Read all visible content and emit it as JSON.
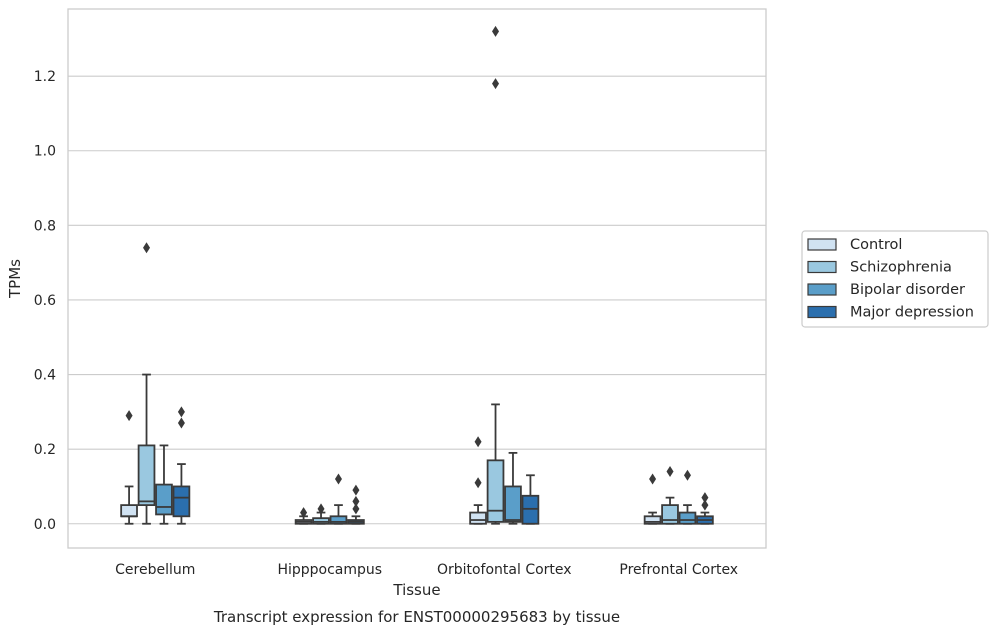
{
  "chart_data": {
    "type": "box",
    "title": "",
    "caption": "Transcript expression for ENST00000295683 by tissue",
    "xlabel": "Tissue",
    "ylabel": "TPMs",
    "ylim": [
      -0.065,
      1.38
    ],
    "yticks": [
      "0.0",
      "0.2",
      "0.4",
      "0.6",
      "0.8",
      "1.0",
      "1.2"
    ],
    "grid": "horizontal",
    "legend_position": "right",
    "categories": [
      "Cerebellum",
      "Hipppocampus",
      "Orbitofontal Cortex",
      "Prefrontal Cortex"
    ],
    "series": [
      {
        "name": "Control",
        "color": "#d0e2f2",
        "boxes": [
          {
            "whislo": 0.0,
            "q1": 0.02,
            "med": 0.02,
            "q3": 0.05,
            "whishi": 0.1,
            "fliers": [
              0.29
            ]
          },
          {
            "whislo": 0.0,
            "q1": 0.0,
            "med": 0.005,
            "q3": 0.01,
            "whishi": 0.02,
            "fliers": [
              0.03
            ]
          },
          {
            "whislo": 0.0,
            "q1": 0.0,
            "med": 0.01,
            "q3": 0.03,
            "whishi": 0.05,
            "fliers": [
              0.11,
              0.22
            ]
          },
          {
            "whislo": 0.0,
            "q1": 0.0,
            "med": 0.005,
            "q3": 0.02,
            "whishi": 0.03,
            "fliers": [
              0.12
            ]
          }
        ]
      },
      {
        "name": "Schizophrenia",
        "color": "#9ac8e0",
        "boxes": [
          {
            "whislo": 0.0,
            "q1": 0.05,
            "med": 0.06,
            "q3": 0.21,
            "whishi": 0.4,
            "fliers": [
              0.74
            ]
          },
          {
            "whislo": 0.0,
            "q1": 0.0,
            "med": 0.005,
            "q3": 0.015,
            "whishi": 0.03,
            "fliers": [
              0.04
            ]
          },
          {
            "whislo": 0.0,
            "q1": 0.005,
            "med": 0.035,
            "q3": 0.17,
            "whishi": 0.32,
            "fliers": [
              1.18,
              1.32
            ]
          },
          {
            "whislo": 0.0,
            "q1": 0.0,
            "med": 0.01,
            "q3": 0.05,
            "whishi": 0.07,
            "fliers": [
              0.14
            ]
          }
        ]
      },
      {
        "name": "Bipolar disorder",
        "color": "#5a9ec9",
        "boxes": [
          {
            "whislo": 0.0,
            "q1": 0.025,
            "med": 0.045,
            "q3": 0.105,
            "whishi": 0.21,
            "fliers": []
          },
          {
            "whislo": 0.0,
            "q1": 0.0,
            "med": 0.005,
            "q3": 0.02,
            "whishi": 0.05,
            "fliers": [
              0.12
            ]
          },
          {
            "whislo": 0.0,
            "q1": 0.005,
            "med": 0.01,
            "q3": 0.1,
            "whishi": 0.19,
            "fliers": []
          },
          {
            "whislo": 0.0,
            "q1": 0.0,
            "med": 0.01,
            "q3": 0.03,
            "whishi": 0.05,
            "fliers": [
              0.13
            ]
          }
        ]
      },
      {
        "name": "Major depression",
        "color": "#2b6fae",
        "boxes": [
          {
            "whislo": 0.0,
            "q1": 0.02,
            "med": 0.07,
            "q3": 0.1,
            "whishi": 0.16,
            "fliers": [
              0.27,
              0.3
            ]
          },
          {
            "whislo": 0.0,
            "q1": 0.0,
            "med": 0.005,
            "q3": 0.01,
            "whishi": 0.02,
            "fliers": [
              0.04,
              0.06,
              0.09
            ]
          },
          {
            "whislo": 0.0,
            "q1": 0.0,
            "med": 0.04,
            "q3": 0.075,
            "whishi": 0.13,
            "fliers": []
          },
          {
            "whislo": 0.0,
            "q1": 0.0,
            "med": 0.01,
            "q3": 0.02,
            "whishi": 0.03,
            "fliers": [
              0.05,
              0.07
            ]
          }
        ]
      }
    ]
  }
}
